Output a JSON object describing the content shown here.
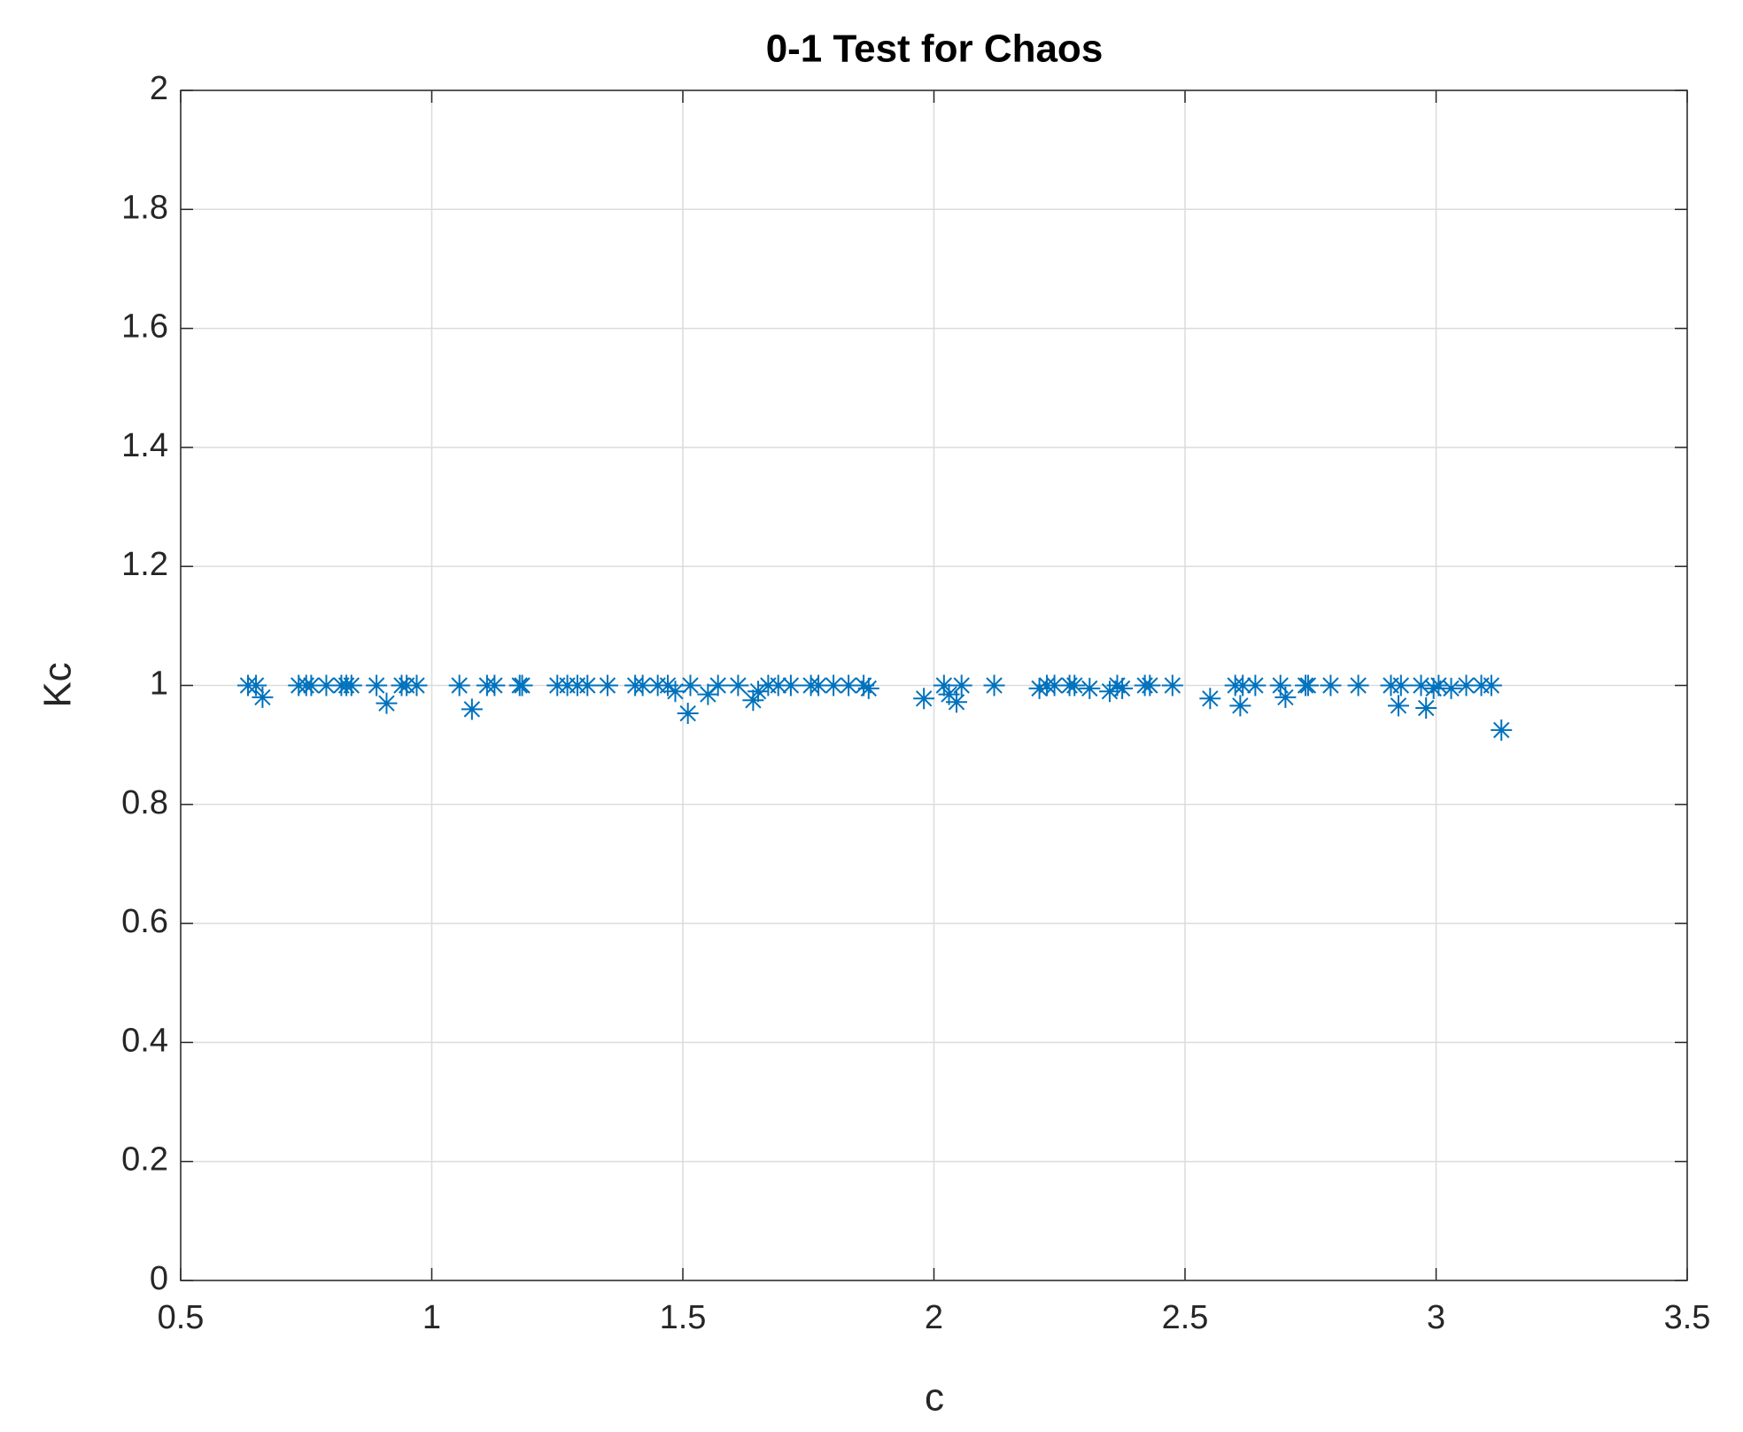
{
  "chart_data": {
    "type": "scatter",
    "title": "0-1 Test for Chaos",
    "x_label": "c",
    "y_label": "Kc",
    "series": [
      {
        "color": "#0072bd",
        "x": [
          0.634,
          0.65,
          0.663,
          0.735,
          0.75,
          0.76,
          0.79,
          0.82,
          0.83,
          0.84,
          0.89,
          0.91,
          0.94,
          0.95,
          0.97,
          1.055,
          1.08,
          1.11,
          1.125,
          1.175,
          1.18,
          1.25,
          1.27,
          1.29,
          1.31,
          1.35,
          1.405,
          1.42,
          1.45,
          1.47,
          1.485,
          1.515,
          1.51,
          1.55,
          1.57,
          1.61,
          1.64,
          1.65,
          1.67,
          1.69,
          1.715,
          1.755,
          1.77,
          1.8,
          1.83,
          1.86,
          1.87,
          1.98,
          2.02,
          2.03,
          2.045,
          2.055,
          2.12,
          2.21,
          2.225,
          2.24,
          2.27,
          2.28,
          2.31,
          2.35,
          2.365,
          2.375,
          2.42,
          2.43,
          2.475,
          2.55,
          2.6,
          2.61,
          2.615,
          2.64,
          2.69,
          2.7,
          2.74,
          2.745,
          2.79,
          2.845,
          2.91,
          2.925,
          2.93,
          2.97,
          2.98,
          2.995,
          3.005,
          3.03,
          3.06,
          3.09,
          3.11,
          3.13
        ],
        "values": [
          1.0,
          1.0,
          0.98,
          1.0,
          1.0,
          1.0,
          1.0,
          1.0,
          1.0,
          1.0,
          1.0,
          0.97,
          1.0,
          1.0,
          1.0,
          1.0,
          0.96,
          1.0,
          1.0,
          1.0,
          1.0,
          1.0,
          1.0,
          1.0,
          1.0,
          1.0,
          1.0,
          1.0,
          1.0,
          1.0,
          0.99,
          1.0,
          0.953,
          0.985,
          1.0,
          1.0,
          0.975,
          0.99,
          1.0,
          1.0,
          1.0,
          1.0,
          1.0,
          1.0,
          1.0,
          1.0,
          0.995,
          0.978,
          1.0,
          0.985,
          0.972,
          1.0,
          1.0,
          0.995,
          1.0,
          1.0,
          1.0,
          1.0,
          0.995,
          0.99,
          1.0,
          0.995,
          1.0,
          1.0,
          1.0,
          0.978,
          1.0,
          0.966,
          1.0,
          1.0,
          1.0,
          0.98,
          1.0,
          1.0,
          1.0,
          1.0,
          1.0,
          0.966,
          1.0,
          1.0,
          0.962,
          0.995,
          1.0,
          0.995,
          1.0,
          1.0,
          1.0,
          0.925
        ]
      }
    ],
    "xlim": [
      0.5,
      3.5
    ],
    "xticks": [
      0.5,
      1,
      1.5,
      2,
      2.5,
      3,
      3.5
    ],
    "ylim": [
      0,
      2
    ],
    "yticks": [
      0,
      0.2,
      0.4,
      0.6,
      0.8,
      1,
      1.2,
      1.4,
      1.6,
      1.8,
      2
    ],
    "grid": true
  }
}
